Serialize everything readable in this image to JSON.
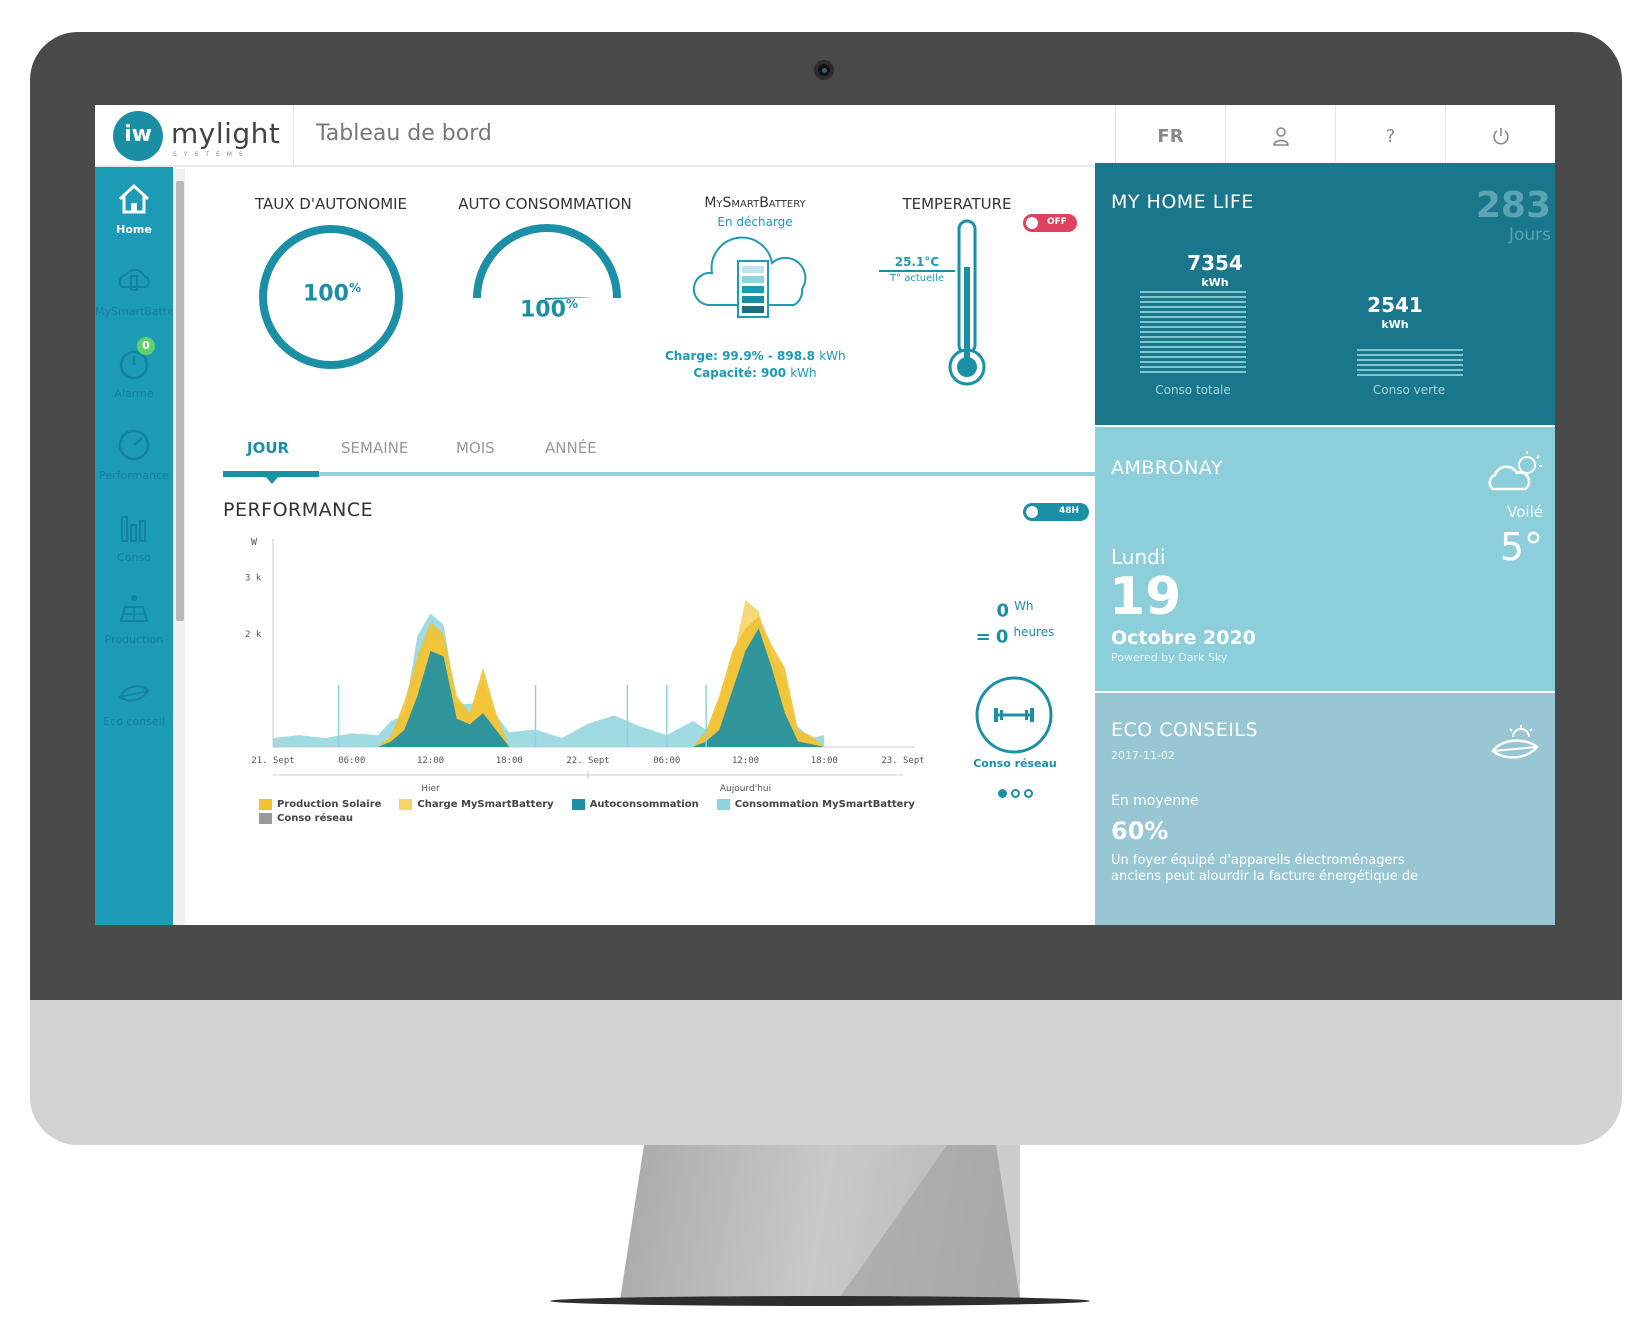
{
  "app": {
    "logo_mark": "iw",
    "logo_name": "mylight",
    "logo_sub": "SYSTEMS",
    "page_title": "Tableau de bord"
  },
  "topbar": {
    "lang": "FR",
    "user_icon": "user-icon",
    "help": "?",
    "power_icon": "power-icon"
  },
  "sidebar": {
    "items": [
      {
        "label": "Home",
        "icon": "home-icon"
      },
      {
        "label": "MySmartBattery",
        "icon": "battery-icon"
      },
      {
        "label": "Alarme",
        "icon": "alarm-icon",
        "badge": "0"
      },
      {
        "label": "Performance",
        "icon": "gauge-icon"
      },
      {
        "label": "Conso",
        "icon": "bar-chart-icon"
      },
      {
        "label": "Production",
        "icon": "solar-panel-icon"
      },
      {
        "label": "Eco conseil",
        "icon": "leaf-icon"
      }
    ]
  },
  "widgets": {
    "autonomie": {
      "title": "TAUX D'AUTONOMIE",
      "value": "100",
      "unit": "%"
    },
    "autoconso": {
      "title": "AUTO CONSOMMATION",
      "value": "100",
      "unit": "%"
    },
    "battery": {
      "title": "MySmartBattery",
      "status": "En décharge",
      "charge_label": "Charge: 99.9% - 898.8",
      "charge_unit": "kWh",
      "capacity_label": "Capacité: 900",
      "capacity_unit": "kWh"
    },
    "temperature": {
      "title": "TEMPERATURE",
      "toggle": "OFF",
      "value": "25.1°C",
      "sub": "T° actuelle"
    }
  },
  "tabs": [
    "JOUR",
    "SEMAINE",
    "MOIS",
    "ANNÉE"
  ],
  "performance": {
    "title": "PERFORMANCE",
    "toggle_label": "48H",
    "conso_value": "0",
    "conso_unit": "Wh",
    "hours_prefix": "=",
    "hours_value": "0",
    "hours_unit": "heures",
    "conso_label": "Conso réseau"
  },
  "chart_data": {
    "type": "area",
    "ylabel": "W",
    "yticks": [
      "2 k",
      "3 k"
    ],
    "ylim": [
      0,
      3500
    ],
    "xticks": [
      "21. Sept",
      "06:00",
      "12:00",
      "18:00",
      "22. Sept",
      "06:00",
      "12:00",
      "18:00",
      "23. Sept"
    ],
    "day_labels": [
      "Hier",
      "Aujourd'hui"
    ],
    "x_hours": [
      0,
      2,
      4,
      6,
      8,
      9,
      10,
      11,
      12,
      13,
      14,
      15,
      16,
      17,
      18,
      20,
      22,
      24,
      26,
      28,
      30,
      32,
      33,
      34,
      35,
      36,
      37,
      38,
      39,
      40,
      41,
      42
    ],
    "series": [
      {
        "name": "Production Solaire",
        "color": "#f1c232",
        "values": [
          0,
          0,
          0,
          0,
          0,
          200,
          800,
          1600,
          2200,
          2000,
          900,
          600,
          1400,
          600,
          0,
          0,
          0,
          0,
          0,
          0,
          0,
          0,
          300,
          900,
          1700,
          2100,
          2300,
          1800,
          1400,
          300,
          200,
          0
        ]
      },
      {
        "name": "Charge MySmartBattery",
        "color": "#f5d46a",
        "values": [
          0,
          0,
          0,
          0,
          0,
          150,
          500,
          1400,
          2000,
          1800,
          700,
          500,
          1200,
          500,
          0,
          0,
          0,
          0,
          0,
          0,
          0,
          0,
          200,
          800,
          1500,
          2600,
          2400,
          1600,
          1200,
          200,
          150,
          0
        ]
      },
      {
        "name": "Autoconsommation",
        "color": "#1b8fa6",
        "values": [
          0,
          0,
          0,
          0,
          0,
          100,
          300,
          900,
          1700,
          1600,
          500,
          400,
          600,
          300,
          0,
          0,
          0,
          0,
          0,
          0,
          0,
          0,
          100,
          300,
          1000,
          1700,
          2100,
          1400,
          600,
          100,
          50,
          0
        ]
      },
      {
        "name": "Consommation MySmartBattery",
        "color": "#8fd3de",
        "values": [
          200,
          150,
          200,
          180,
          250,
          400,
          600,
          1900,
          2400,
          2100,
          800,
          700,
          900,
          500,
          300,
          250,
          200,
          350,
          600,
          300,
          250,
          400,
          350,
          500,
          900,
          1800,
          2000,
          1600,
          700,
          300,
          200,
          150
        ]
      },
      {
        "name": "Conso réseau",
        "color": "#9a9a9a",
        "values": [
          0,
          0,
          0,
          0,
          0,
          0,
          0,
          0,
          0,
          0,
          0,
          0,
          0,
          0,
          0,
          0,
          0,
          0,
          0,
          0,
          0,
          0,
          0,
          0,
          0,
          0,
          0,
          0,
          0,
          0,
          0,
          0
        ]
      }
    ]
  },
  "home_life": {
    "title": "MY HOME LIFE",
    "days_value": "283",
    "days_label": "Jours",
    "total_value": "7354",
    "total_unit": "kWh",
    "total_label": "Conso totale",
    "green_value": "2541",
    "green_unit": "kWh",
    "green_label": "Conso verte"
  },
  "weather": {
    "city": "AMBRONAY",
    "condition": "Voilé",
    "temp": "5°",
    "weekday": "Lundi",
    "day": "19",
    "month_year": "Octobre 2020",
    "powered": "Powered by Dark Sky"
  },
  "eco": {
    "title": "ECO CONSEILS",
    "date": "2017-11-02",
    "intro": "En moyenne",
    "value": "60%",
    "text_line1": "Un foyer équipé d'appareils électroménagers",
    "text_line2": "anciens peut alourdir la facture énergétique de"
  },
  "colors": {
    "brand": "#1b9bb5",
    "dark_teal": "#1a768a",
    "light_teal": "#8ccfdb",
    "solar": "#f1c232",
    "toggle_off": "#e0415f"
  }
}
